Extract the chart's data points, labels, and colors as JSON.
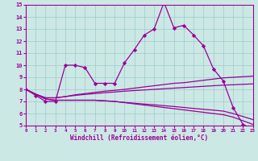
{
  "xlabel": "Windchill (Refroidissement éolien,°C)",
  "xlim": [
    0,
    23
  ],
  "ylim": [
    5,
    15
  ],
  "yticks": [
    5,
    6,
    7,
    8,
    9,
    10,
    11,
    12,
    13,
    14,
    15
  ],
  "xticks": [
    0,
    1,
    2,
    3,
    4,
    5,
    6,
    7,
    8,
    9,
    10,
    11,
    12,
    13,
    14,
    15,
    16,
    17,
    18,
    19,
    20,
    21,
    22,
    23
  ],
  "background_color": "#cce8e4",
  "line_color": "#990099",
  "grid_color": "#99cccc",
  "series": [
    [
      8.0,
      7.5,
      7.0,
      7.0,
      10.0,
      10.0,
      9.8,
      8.5,
      8.5,
      8.5,
      10.2,
      11.3,
      12.5,
      13.0,
      15.2,
      13.1,
      13.3,
      12.5,
      11.6,
      9.7,
      8.7,
      6.5,
      5.1,
      4.7
    ],
    [
      8.0,
      7.6,
      7.3,
      7.3,
      7.4,
      7.55,
      7.65,
      7.75,
      7.85,
      7.92,
      8.0,
      8.1,
      8.2,
      8.3,
      8.4,
      8.5,
      8.55,
      8.65,
      8.75,
      8.85,
      8.95,
      9.0,
      9.05,
      9.1
    ],
    [
      8.0,
      7.6,
      7.3,
      7.3,
      7.4,
      7.5,
      7.58,
      7.65,
      7.72,
      7.78,
      7.85,
      7.9,
      7.95,
      8.0,
      8.05,
      8.1,
      8.15,
      8.2,
      8.25,
      8.3,
      8.35,
      8.38,
      8.42,
      8.45
    ],
    [
      8.0,
      7.6,
      7.2,
      7.1,
      7.1,
      7.1,
      7.1,
      7.1,
      7.05,
      7.0,
      6.9,
      6.8,
      6.7,
      6.6,
      6.5,
      6.4,
      6.3,
      6.2,
      6.1,
      6.0,
      5.9,
      5.7,
      5.4,
      5.1
    ],
    [
      8.0,
      7.6,
      7.2,
      7.1,
      7.1,
      7.1,
      7.1,
      7.1,
      7.05,
      7.0,
      6.92,
      6.85,
      6.78,
      6.72,
      6.65,
      6.58,
      6.5,
      6.42,
      6.35,
      6.28,
      6.2,
      6.0,
      5.75,
      5.5
    ]
  ]
}
